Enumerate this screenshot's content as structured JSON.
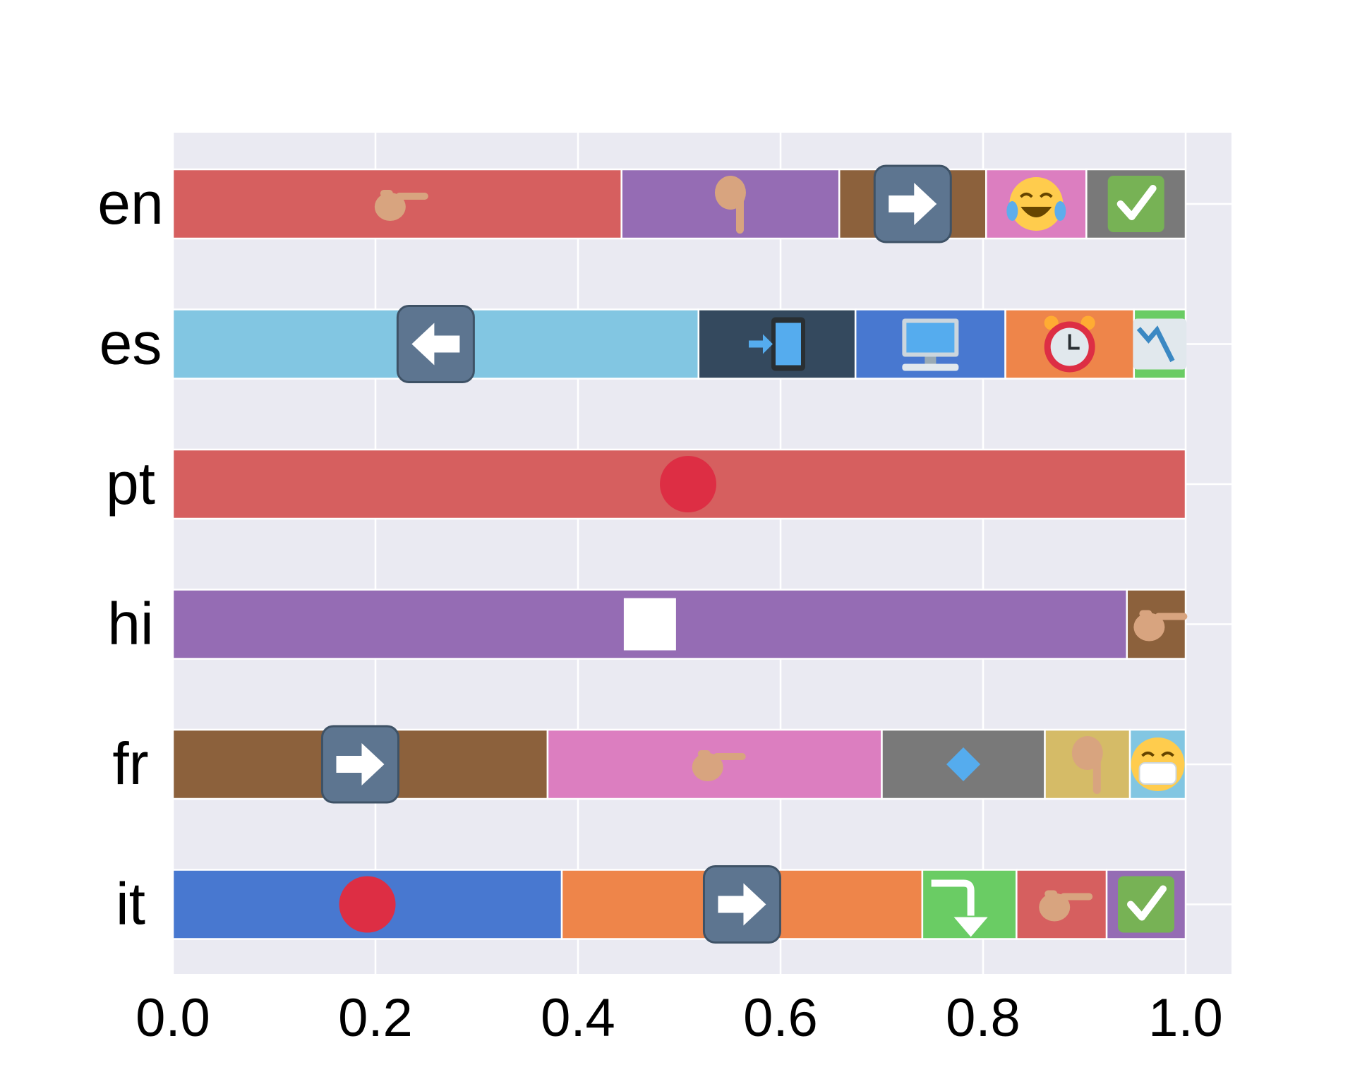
{
  "chart_data": {
    "type": "bar",
    "orientation": "horizontal",
    "stacked": true,
    "categories": [
      "en",
      "es",
      "pt",
      "hi",
      "fr",
      "it"
    ],
    "x_ticks": [
      "0.0",
      "0.2",
      "0.4",
      "0.6",
      "0.8",
      "1.0"
    ],
    "xlim": [
      0,
      1.05
    ],
    "grid": true,
    "background": "#eaeaf2",
    "rows": [
      {
        "category": "en",
        "segments": [
          {
            "value": 0.443,
            "color": "#d65f5f",
            "icon": "backhand-index-pointing-right-icon"
          },
          {
            "value": 0.215,
            "color": "#956cb4",
            "icon": "backhand-index-pointing-down-icon"
          },
          {
            "value": 0.145,
            "color": "#8c613c",
            "icon": "right-arrow-icon"
          },
          {
            "value": 0.099,
            "color": "#dc7ec0",
            "icon": "face-with-tears-of-joy-icon"
          },
          {
            "value": 0.098,
            "color": "#797979",
            "icon": "check-mark-button-icon"
          }
        ]
      },
      {
        "category": "es",
        "segments": [
          {
            "value": 0.519,
            "color": "#82c6e2",
            "icon": "left-arrow-icon"
          },
          {
            "value": 0.155,
            "color": "#34495e",
            "icon": "mobile-arrow-icon"
          },
          {
            "value": 0.148,
            "color": "#4878d0",
            "icon": "desktop-computer-icon"
          },
          {
            "value": 0.127,
            "color": "#ee854a",
            "icon": "alarm-clock-icon"
          },
          {
            "value": 0.051,
            "color": "#6acc64",
            "icon": "chart-decreasing-icon"
          }
        ]
      },
      {
        "category": "pt",
        "segments": [
          {
            "value": 1.0,
            "color": "#d65f5f",
            "icon": "red-circle-icon"
          }
        ]
      },
      {
        "category": "hi",
        "segments": [
          {
            "value": 0.942,
            "color": "#956cb4",
            "icon": "white-square-icon"
          },
          {
            "value": 0.058,
            "color": "#8c613c",
            "icon": "backhand-index-pointing-right-icon"
          }
        ]
      },
      {
        "category": "fr",
        "segments": [
          {
            "value": 0.37,
            "color": "#8c613c",
            "icon": "right-arrow-icon"
          },
          {
            "value": 0.33,
            "color": "#dc7ec0",
            "icon": "backhand-index-pointing-right-icon"
          },
          {
            "value": 0.161,
            "color": "#797979",
            "icon": "small-blue-diamond-icon"
          },
          {
            "value": 0.084,
            "color": "#d5bb67",
            "icon": "backhand-index-pointing-down-icon"
          },
          {
            "value": 0.055,
            "color": "#82c6e2",
            "icon": "face-with-medical-mask-icon"
          }
        ]
      },
      {
        "category": "it",
        "segments": [
          {
            "value": 0.384,
            "color": "#4878d0",
            "icon": "red-circle-icon"
          },
          {
            "value": 0.356,
            "color": "#ee854a",
            "icon": "right-arrow-icon"
          },
          {
            "value": 0.093,
            "color": "#6acc64",
            "icon": "right-arrow-curving-down-icon"
          },
          {
            "value": 0.089,
            "color": "#d65f5f",
            "icon": "backhand-index-pointing-right-icon"
          },
          {
            "value": 0.078,
            "color": "#956cb4",
            "icon": "check-mark-button-icon"
          }
        ]
      }
    ]
  }
}
